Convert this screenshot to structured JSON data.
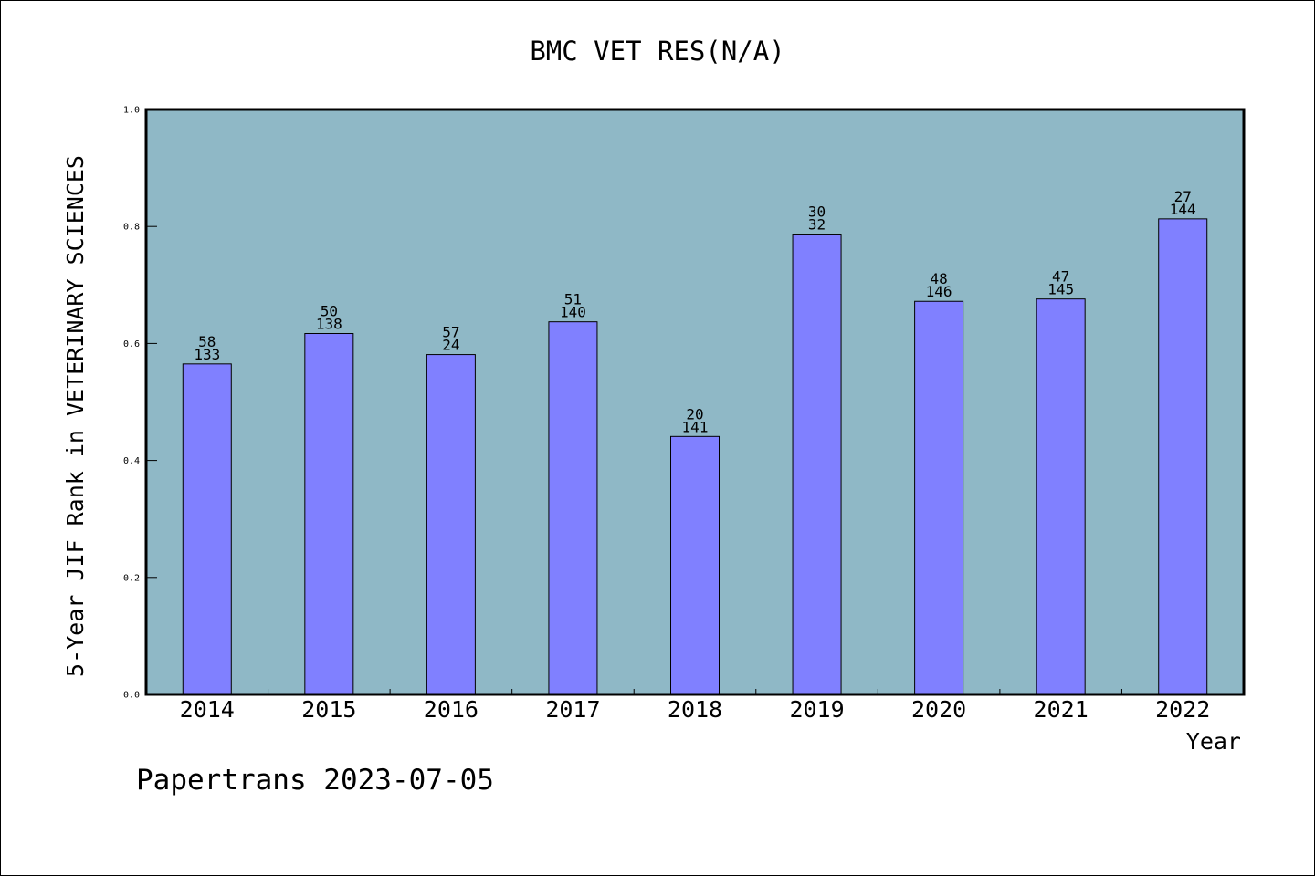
{
  "footer": "Papertrans 2023-07-05",
  "chart_data": {
    "type": "bar",
    "title": "BMC VET RES(N/A)",
    "xlabel": "Year",
    "ylabel": "5-Year JIF Rank in VETERINARY SCIENCES",
    "ylim": [
      0,
      1.0
    ],
    "yticks": [
      "0.0",
      "0.2",
      "0.4",
      "0.6",
      "0.8",
      "1.0"
    ],
    "grid": false,
    "categories": [
      "2014",
      "2015",
      "2016",
      "2017",
      "2018",
      "2019",
      "2020",
      "2021",
      "2022"
    ],
    "values": [
      0.565,
      0.617,
      0.581,
      0.637,
      0.441,
      0.787,
      0.672,
      0.676,
      0.813
    ],
    "labels_top": [
      "58",
      "50",
      "57",
      "51",
      "20",
      "30",
      "48",
      "47",
      "27"
    ],
    "labels_bottom": [
      "133",
      "138",
      "24",
      "140",
      "141",
      "32",
      "146",
      "145",
      "144"
    ],
    "colors": {
      "plot_background": "#8fb8c6",
      "bar_fill": "#8080ff",
      "bar_stroke": "#000000"
    }
  }
}
